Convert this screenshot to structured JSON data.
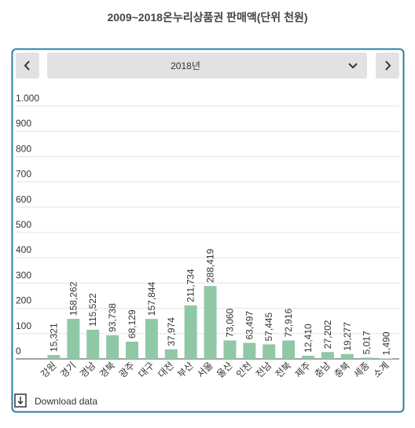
{
  "chart_data": {
    "type": "bar",
    "title": "2009~2018온누리상품권 판매액(단위 천원)",
    "categories": [
      "강원",
      "경기",
      "경남",
      "경북",
      "광주",
      "대구",
      "대전",
      "부산",
      "서울",
      "울산",
      "인천",
      "전남",
      "전북",
      "제주",
      "충남",
      "충북",
      "세종",
      "소계"
    ],
    "values": [
      15.321,
      158.262,
      115.522,
      93.738,
      68.129,
      157.844,
      37.974,
      211.734,
      288.419,
      73.06,
      63.497,
      57.445,
      72.916,
      12.41,
      27.202,
      19.277,
      5.017,
      1.49
    ],
    "value_labels": [
      "15,321",
      "158,262",
      "115,522",
      "93,738",
      "68,129",
      "157,844",
      "37,974",
      "211,734",
      "288,419",
      "73,060",
      "63,497",
      "57,445",
      "72,916",
      "12,410",
      "27,202",
      "19,277",
      "5,017",
      "1,490"
    ],
    "color": "#90c8a5",
    "ylim": [
      0,
      1000
    ],
    "yticks": [
      0,
      100,
      200,
      300,
      400,
      500,
      600,
      700,
      800,
      900,
      {
        "value": 1000,
        "label": "1.000"
      }
    ],
    "grid": true
  },
  "ui": {
    "selected": "2018년",
    "download": "Download data"
  }
}
